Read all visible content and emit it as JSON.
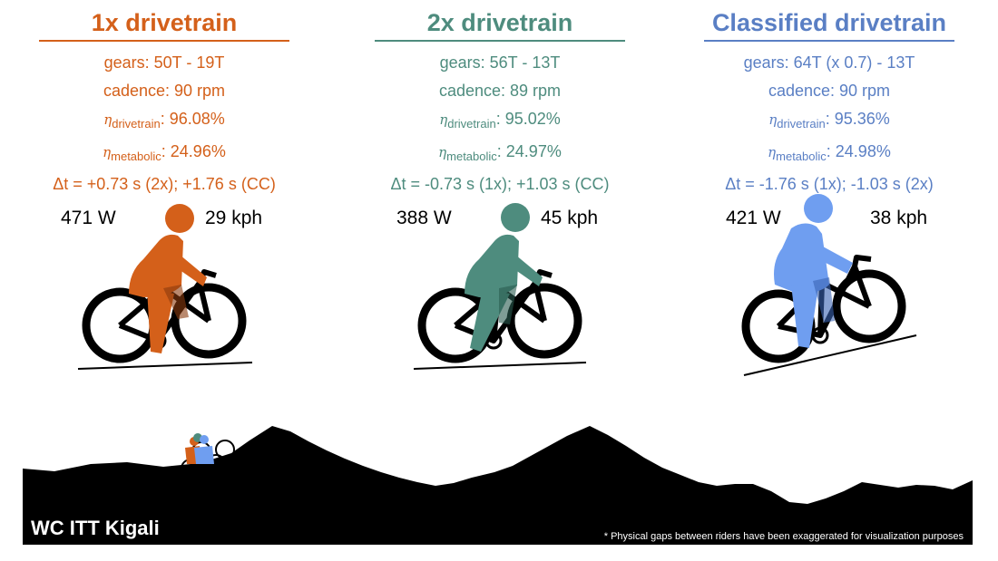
{
  "panels": [
    {
      "title": "1x drivetrain",
      "color": "#d4601a",
      "gears": "gears: 50T - 19T",
      "cadence": "cadence: 90 rpm",
      "eta_symbol": "η",
      "eta_drivetrain_sub": "drivetrain",
      "eta_drivetrain_value": ": 96.08%",
      "eta_metabolic_sub": "metabolic",
      "eta_metabolic_value": ": 24.96%",
      "delta": "Δt = +0.73 s (2x); +1.76 s (CC)",
      "power": "471 W",
      "speed": "29 kph"
    },
    {
      "title": "2x drivetrain",
      "color": "#4e8c7e",
      "gears": "gears: 56T - 13T",
      "cadence": "cadence: 89 rpm",
      "eta_symbol": "η",
      "eta_drivetrain_sub": "drivetrain",
      "eta_drivetrain_value": ": 95.02%",
      "eta_metabolic_sub": "metabolic",
      "eta_metabolic_value": ": 24.97%",
      "delta": "Δt = -0.73 s (1x); +1.03 s (CC)",
      "power": "388 W",
      "speed": "45 kph"
    },
    {
      "title": "Classified drivetrain",
      "color": "#5a7fc4",
      "gears": "gears: 64T (x 0.7) - 13T",
      "cadence": "cadence: 90 rpm",
      "eta_symbol": "η",
      "eta_drivetrain_sub": "drivetrain",
      "eta_drivetrain_value": ": 95.36%",
      "eta_metabolic_sub": "metabolic",
      "eta_metabolic_value": ": 24.98%",
      "delta": "Δt = -1.76 s (1x); -1.03 s (2x)",
      "power": "421 W",
      "speed": "38 kph"
    }
  ],
  "rider_colors": [
    "#d4601a",
    "#4e8c7e",
    "#6f9ef0"
  ],
  "course_title": "WC ITT Kigali",
  "footnote": "* Physical gaps between riders have been exaggerated for visualization purposes"
}
